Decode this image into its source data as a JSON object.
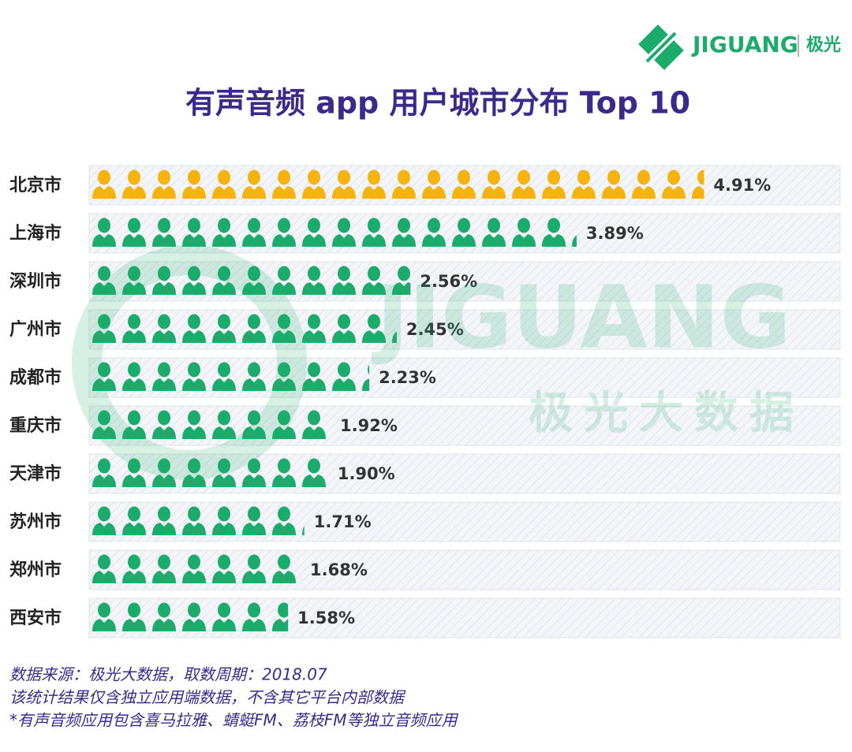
{
  "logo": {
    "brand": "JIGUANG",
    "name": "极光"
  },
  "watermark": {
    "brand": "JIGUANG",
    "label": "极光大数据"
  },
  "chart_data": {
    "type": "bar",
    "orientation": "horizontal",
    "title": "有声音频 app 用户城市分布 Top 10",
    "categories": [
      "北京市",
      "上海市",
      "深圳市",
      "广州市",
      "成都市",
      "重庆市",
      "天津市",
      "苏州市",
      "郑州市",
      "西安市"
    ],
    "values": [
      4.91,
      3.89,
      2.56,
      2.45,
      2.23,
      1.92,
      1.9,
      1.71,
      1.68,
      1.58
    ],
    "value_labels": [
      "4.91%",
      "3.89%",
      "2.56%",
      "2.45%",
      "2.23%",
      "1.92%",
      "1.90%",
      "1.71%",
      "1.68%",
      "1.58%"
    ],
    "colors": [
      "#f6b30f",
      "#1bab6b",
      "#1bab6b",
      "#1bab6b",
      "#1bab6b",
      "#1bab6b",
      "#1bab6b",
      "#1bab6b",
      "#1bab6b",
      "#1bab6b"
    ],
    "xlim": [
      0,
      6
    ],
    "footnotes": [
      "数据来源：极光大数据，取数周期：2018.07",
      "该统计结果仅含独立应用端数据，不含其它平台内部数据",
      " *有声音频应用包含喜马拉雅、蜻蜓FM、荔枝FM等独立音频应用"
    ]
  }
}
